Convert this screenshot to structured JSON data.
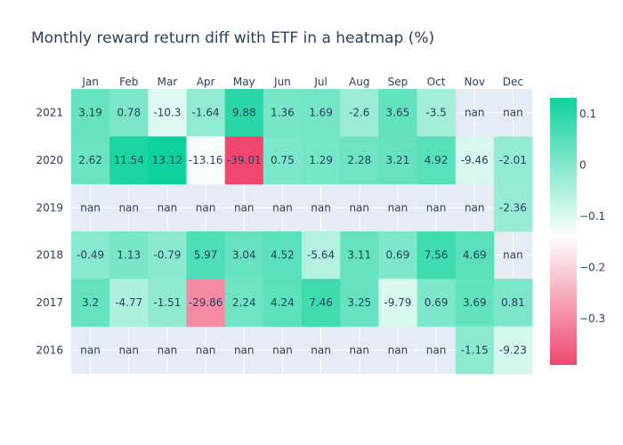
{
  "chart_data": {
    "type": "heatmap",
    "title": "Monthly reward return diff with ETF in a heatmap (%)",
    "xlabel": "",
    "ylabel": "",
    "x_categories": [
      "Jan",
      "Feb",
      "Mar",
      "Apr",
      "May",
      "Jun",
      "Jul",
      "Aug",
      "Sep",
      "Oct",
      "Nov",
      "Dec"
    ],
    "y_categories": [
      "2021",
      "2020",
      "2019",
      "2018",
      "2017",
      "2016"
    ],
    "values": [
      [
        3.19,
        0.78,
        -10.3,
        -1.64,
        9.88,
        1.36,
        1.69,
        -2.6,
        3.65,
        -3.5,
        null,
        null
      ],
      [
        2.62,
        11.54,
        13.12,
        -13.16,
        -39.01,
        0.75,
        1.29,
        2.28,
        3.21,
        4.92,
        -9.46,
        -2.01
      ],
      [
        null,
        null,
        null,
        null,
        null,
        null,
        null,
        null,
        null,
        null,
        null,
        -2.36
      ],
      [
        -0.49,
        1.13,
        -0.79,
        5.97,
        3.04,
        4.52,
        -5.64,
        3.11,
        0.69,
        7.56,
        4.69,
        null
      ],
      [
        3.2,
        -4.77,
        -1.51,
        -29.86,
        2.24,
        4.24,
        7.46,
        3.25,
        -9.79,
        0.69,
        3.69,
        0.81
      ],
      [
        null,
        null,
        null,
        null,
        null,
        null,
        null,
        null,
        null,
        null,
        -1.15,
        -9.23
      ]
    ],
    "labels": [
      [
        "3.19",
        "0.78",
        "-10.3",
        "-1.64",
        "9.88",
        "1.36",
        "1.69",
        "-2.6",
        "3.65",
        "-3.5",
        "nan",
        "nan"
      ],
      [
        "2.62",
        "11.54",
        "13.12",
        "-13.16",
        "-39.01",
        "0.75",
        "1.29",
        "2.28",
        "3.21",
        "4.92",
        "-9.46",
        "-2.01"
      ],
      [
        "nan",
        "nan",
        "nan",
        "nan",
        "nan",
        "nan",
        "nan",
        "nan",
        "nan",
        "nan",
        "nan",
        "-2.36"
      ],
      [
        "-0.49",
        "1.13",
        "-0.79",
        "5.97",
        "3.04",
        "4.52",
        "-5.64",
        "3.11",
        "0.69",
        "7.56",
        "4.69",
        "nan"
      ],
      [
        "3.2",
        "-4.77",
        "-1.51",
        "-29.86",
        "2.24",
        "4.24",
        "7.46",
        "3.25",
        "-9.79",
        "0.69",
        "3.69",
        "0.81"
      ],
      [
        "nan",
        "nan",
        "nan",
        "nan",
        "nan",
        "nan",
        "nan",
        "nan",
        "nan",
        "nan",
        "-1.15",
        "-9.23"
      ]
    ],
    "colorscale": {
      "min": -39.01,
      "max": 13.12,
      "stops": [
        {
          "value": -39.01,
          "color": "#f0476e"
        },
        {
          "value": -14.0,
          "color": "#ffffff"
        },
        {
          "value": 13.12,
          "color": "#0ed29d"
        }
      ],
      "nan_color": "#e5ecf6"
    },
    "colorbar": {
      "ticks": [
        0.1,
        0,
        -0.1,
        -0.2,
        -0.3
      ],
      "tick_labels": [
        "0.1",
        "0",
        "−0.1",
        "−0.2",
        "−0.3"
      ]
    },
    "x_axis_side": "top",
    "grid": true
  }
}
